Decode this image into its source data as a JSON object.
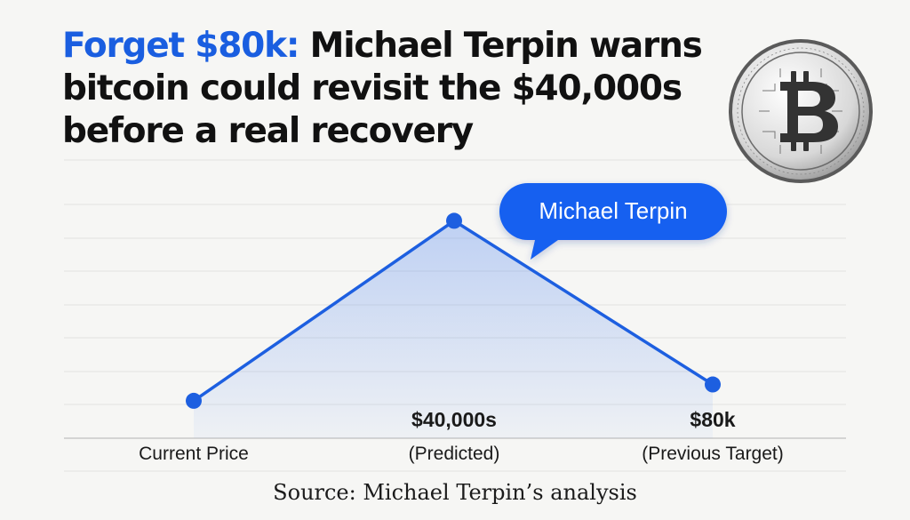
{
  "headline": {
    "accent": "Forget $80k:",
    "rest": " Michael Terpin warns bitcoin could revisit the $40,000s before a real recovery"
  },
  "source": "Source: Michael Terpin’s analysis",
  "callout": {
    "label": "Michael Terpin"
  },
  "coin": {
    "icon": "bitcoin-coin-icon"
  },
  "colors": {
    "accent": "#1a5ee0",
    "line": "#1d5fe0",
    "callout": "#1560f0",
    "text": "#111111"
  },
  "chart_data": {
    "type": "line",
    "grid": true,
    "categories": [
      {
        "name": "Current Price",
        "sub": ""
      },
      {
        "name": "$40,000s",
        "sub": "(Predicted)"
      },
      {
        "name": "$80k",
        "sub": "(Previous Target)"
      }
    ],
    "values": [
      0.16,
      0.93,
      0.23
    ],
    "ylim": [
      0,
      1
    ],
    "title": "",
    "xlabel": "",
    "ylabel": ""
  }
}
